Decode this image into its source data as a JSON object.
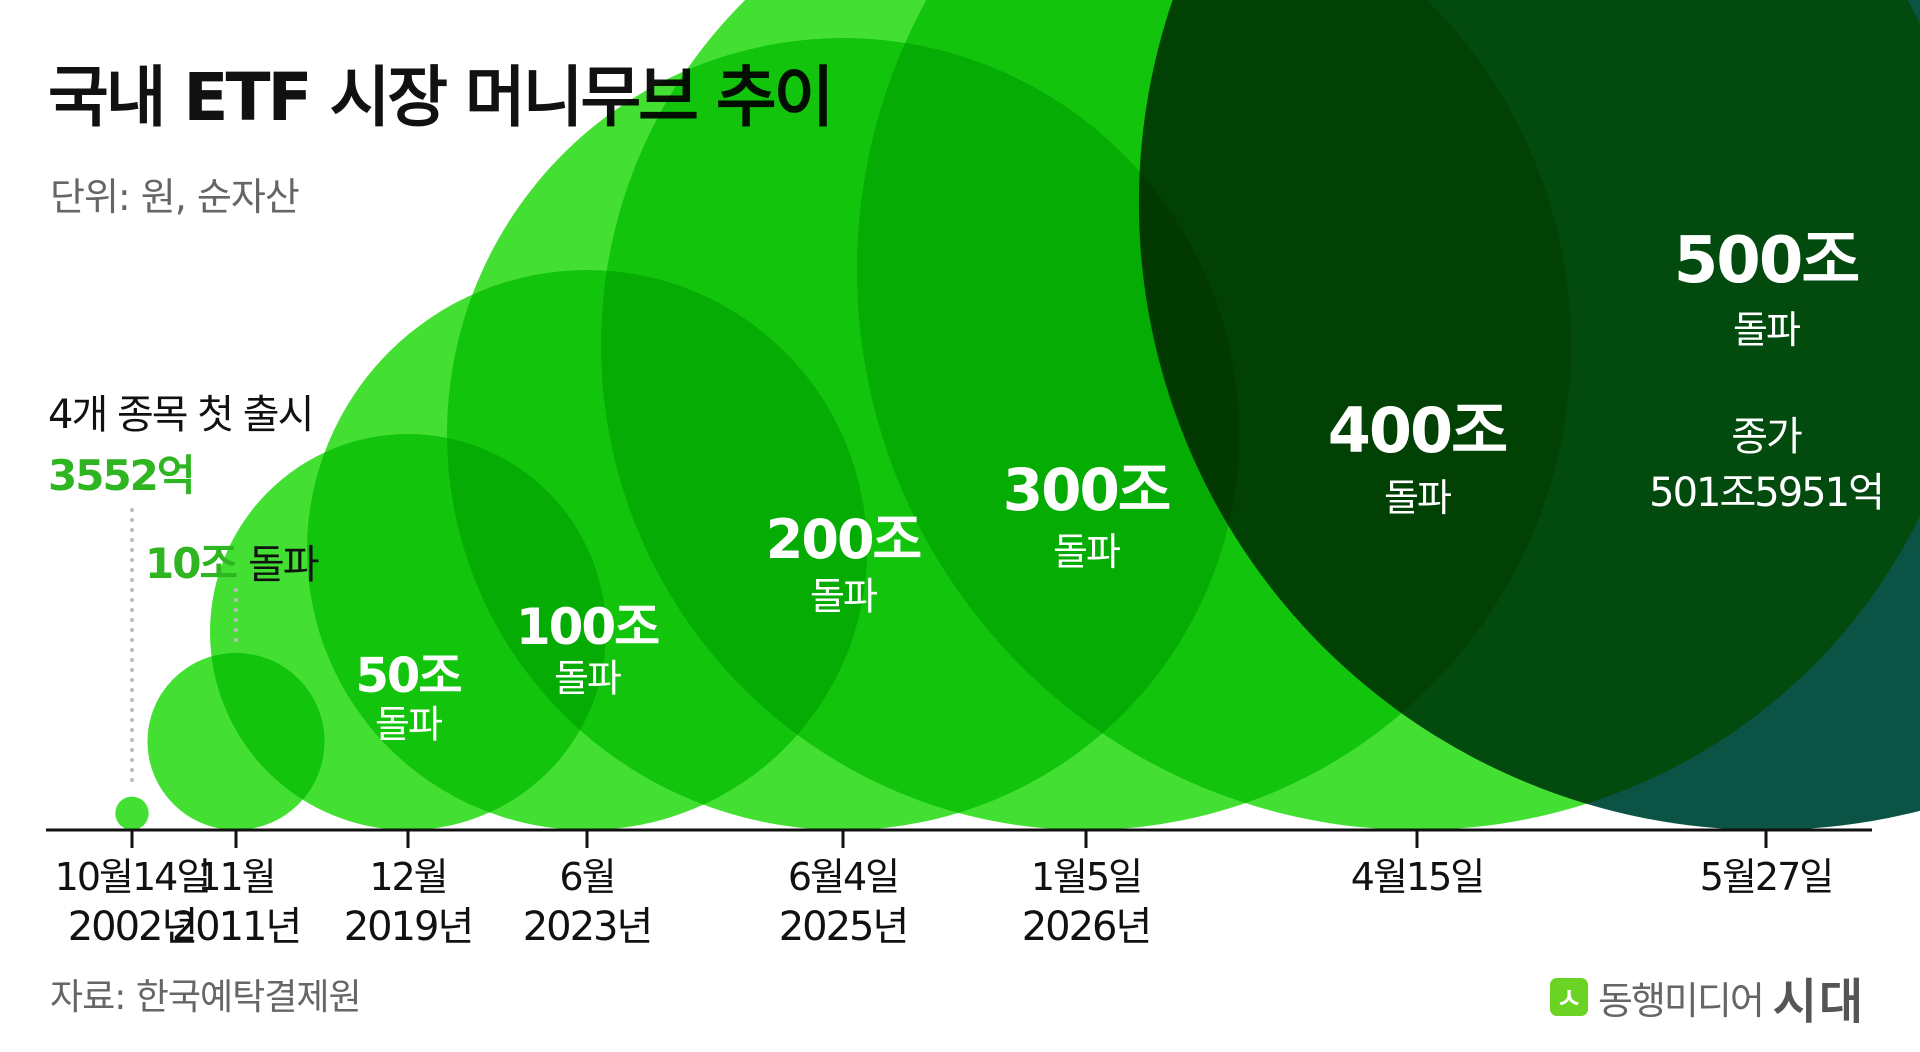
{
  "title": "국내 ETF 시장 머니무브 추이",
  "unit_label": "단위: 원, 순자산",
  "source": "자료: 한국예탁결제원",
  "brand": {
    "icon_char": "ㅅ",
    "name": "동행미디어",
    "sub": "시대"
  },
  "colors": {
    "green": "#14d800",
    "dark": "#0b5445",
    "axis": "#111111",
    "accent": "#2fb521",
    "dots": "#bbbbbb"
  },
  "chart_data": {
    "type": "bubble",
    "title": "국내 ETF 시장 머니무브 추이",
    "unit": "단위: 원, 순자산",
    "points": [
      {
        "date": "2002-10-14",
        "date_line1": "10월14일",
        "date_line2": "2002년",
        "value": 0.3552,
        "value_label": "3552억",
        "note": "4개 종목 첫 출시",
        "sub_label": ""
      },
      {
        "date": "2011-11",
        "date_line1": "11월",
        "date_line2": "2011년",
        "value": 10,
        "value_label": "10조",
        "note": "",
        "sub_label": "돌파"
      },
      {
        "date": "2019-12",
        "date_line1": "12월",
        "date_line2": "2019년",
        "value": 50,
        "value_label": "50조",
        "note": "",
        "sub_label": "돌파"
      },
      {
        "date": "2023-06",
        "date_line1": "6월",
        "date_line2": "2023년",
        "value": 100,
        "value_label": "100조",
        "note": "",
        "sub_label": "돌파"
      },
      {
        "date": "2025-06-04",
        "date_line1": "6월4일",
        "date_line2": "2025년",
        "value": 200,
        "value_label": "200조",
        "note": "",
        "sub_label": "돌파"
      },
      {
        "date": "2026-01-05",
        "date_line1": "1월5일",
        "date_line2": "2026년",
        "value": 300,
        "value_label": "300조",
        "note": "",
        "sub_label": "돌파"
      },
      {
        "date": "2026-04-15",
        "date_line1": "4월15일",
        "date_line2": "",
        "value": 400,
        "value_label": "400조",
        "note": "",
        "sub_label": "돌파"
      },
      {
        "date": "2026-05-27",
        "date_line1": "5월27일",
        "date_line2": "",
        "value": 501.5951,
        "value_label": "500조",
        "note": "",
        "sub_label": "돌파",
        "extra_label": "종가",
        "extra_value": "501조5951억"
      }
    ]
  }
}
